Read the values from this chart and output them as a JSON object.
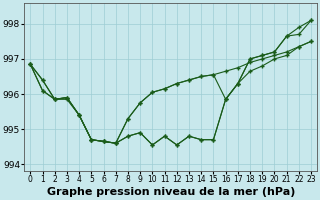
{
  "background_color": "#c8e8ec",
  "grid_color": "#9ecdd5",
  "line_color": "#1a5c1a",
  "title": "Graphe pression niveau de la mer (hPa)",
  "title_fontsize": 8,
  "ylim": [
    993.8,
    998.6
  ],
  "xlim": [
    -0.5,
    23.5
  ],
  "yticks": [
    994,
    995,
    996,
    997,
    998
  ],
  "ytick_fontsize": 6.5,
  "xtick_fontsize": 5.5,
  "series1": [
    996.85,
    996.4,
    995.85,
    995.85,
    995.4,
    994.7,
    994.65,
    994.6,
    994.8,
    994.9,
    994.55,
    994.8,
    994.55,
    994.8,
    994.7,
    994.7,
    995.85,
    996.3,
    997.0,
    997.1,
    997.2,
    997.65,
    997.7,
    998.1
  ],
  "series2": [
    996.85,
    996.1,
    995.85,
    995.9,
    995.4,
    994.7,
    994.65,
    994.6,
    995.3,
    995.75,
    996.05,
    996.15,
    996.3,
    996.4,
    996.5,
    996.55,
    996.65,
    996.75,
    996.9,
    997.0,
    997.1,
    997.2,
    997.35,
    997.5
  ],
  "series3": [
    996.85,
    996.4,
    995.85,
    995.9,
    995.4,
    994.7,
    994.65,
    994.6,
    995.3,
    995.75,
    996.05,
    996.15,
    996.3,
    996.4,
    996.5,
    996.55,
    995.85,
    996.3,
    996.65,
    996.8,
    997.0,
    997.1,
    997.35,
    997.5
  ],
  "series4": [
    996.85,
    996.1,
    995.85,
    995.9,
    995.4,
    994.7,
    994.65,
    994.6,
    994.8,
    994.9,
    994.55,
    994.8,
    994.55,
    994.8,
    994.7,
    994.7,
    995.85,
    996.3,
    997.0,
    997.1,
    997.2,
    997.65,
    997.9,
    998.1
  ]
}
